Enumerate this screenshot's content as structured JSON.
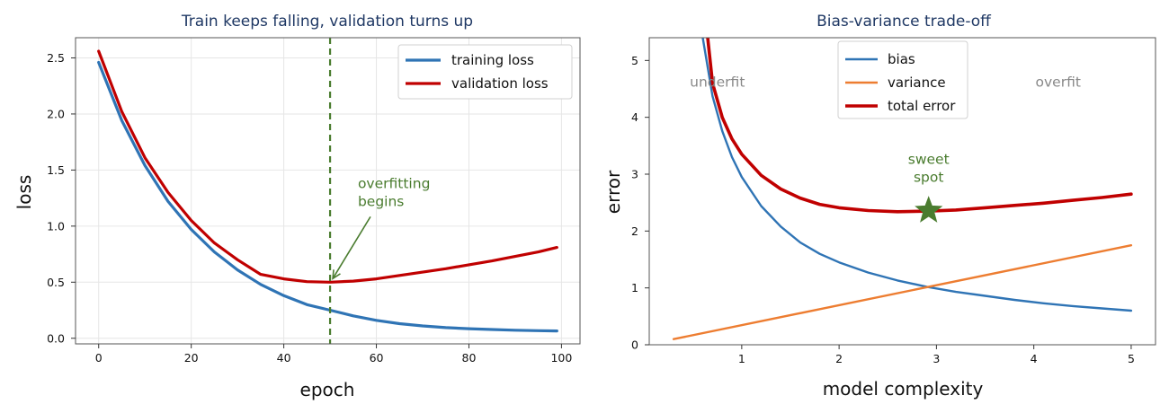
{
  "colors": {
    "training": "#2f74b5",
    "validation": "#c00000",
    "bias": "#2f74b5",
    "variance": "#ed7d31",
    "total": "#c00000",
    "marker": "#4a7c2f",
    "title": "#1f3864",
    "region_text": "#888888"
  },
  "chart_data": [
    {
      "type": "line",
      "title": "Train keeps falling, validation turns up",
      "xlabel": "epoch",
      "ylabel": "loss",
      "xlim": [
        -5,
        104
      ],
      "ylim": [
        -0.05,
        2.68
      ],
      "xticks": [
        0,
        20,
        40,
        60,
        80,
        100
      ],
      "yticks": [
        0.0,
        0.5,
        1.0,
        1.5,
        2.0,
        2.5
      ],
      "grid": true,
      "legend_position": "top-right",
      "series": [
        {
          "name": "training loss",
          "x": [
            0,
            5,
            10,
            15,
            20,
            25,
            30,
            35,
            40,
            45,
            50,
            55,
            60,
            65,
            70,
            75,
            80,
            85,
            90,
            95,
            99
          ],
          "y": [
            2.46,
            1.94,
            1.54,
            1.22,
            0.97,
            0.77,
            0.61,
            0.48,
            0.38,
            0.3,
            0.25,
            0.2,
            0.16,
            0.13,
            0.11,
            0.095,
            0.085,
            0.078,
            0.072,
            0.068,
            0.065
          ]
        },
        {
          "name": "validation loss",
          "x": [
            0,
            5,
            10,
            15,
            20,
            25,
            30,
            35,
            40,
            45,
            50,
            55,
            60,
            65,
            70,
            75,
            80,
            85,
            90,
            95,
            99
          ],
          "y": [
            2.56,
            2.02,
            1.61,
            1.3,
            1.05,
            0.85,
            0.7,
            0.57,
            0.53,
            0.505,
            0.5,
            0.51,
            0.53,
            0.56,
            0.59,
            0.62,
            0.655,
            0.69,
            0.73,
            0.77,
            0.81
          ]
        }
      ],
      "vline": {
        "x": 50
      },
      "annotation": {
        "text_lines": [
          "overfitting",
          "begins"
        ],
        "text_at": [
          56,
          1.34
        ],
        "arrow_to": [
          50,
          0.5
        ]
      }
    },
    {
      "type": "line",
      "title": "Bias-variance trade-off",
      "xlabel": "model complexity",
      "ylabel": "error",
      "xlim": [
        0.05,
        5.25
      ],
      "ylim": [
        0,
        5.4
      ],
      "xticks": [
        1,
        2,
        3,
        4,
        5
      ],
      "yticks": [
        0,
        1,
        2,
        3,
        4,
        5
      ],
      "grid": false,
      "legend_position": "top-center",
      "series": [
        {
          "name": "bias",
          "x": [
            0.6,
            0.7,
            0.8,
            0.9,
            1.0,
            1.2,
            1.4,
            1.6,
            1.8,
            2.0,
            2.3,
            2.6,
            2.9,
            3.2,
            3.5,
            3.8,
            4.1,
            4.4,
            4.7,
            5.0
          ],
          "y": [
            5.4,
            4.37,
            3.76,
            3.3,
            2.95,
            2.44,
            2.08,
            1.8,
            1.6,
            1.45,
            1.27,
            1.13,
            1.02,
            0.93,
            0.86,
            0.79,
            0.73,
            0.68,
            0.64,
            0.6
          ]
        },
        {
          "name": "variance",
          "x": [
            0.3,
            5.0
          ],
          "y": [
            0.1,
            1.75
          ]
        },
        {
          "name": "total error",
          "x": [
            0.65,
            0.7,
            0.8,
            0.9,
            1.0,
            1.2,
            1.4,
            1.6,
            1.8,
            2.0,
            2.3,
            2.6,
            2.9,
            3.2,
            3.5,
            3.8,
            4.1,
            4.4,
            4.7,
            5.0
          ],
          "y": [
            5.4,
            4.6,
            4.0,
            3.62,
            3.35,
            2.98,
            2.74,
            2.58,
            2.47,
            2.41,
            2.36,
            2.34,
            2.35,
            2.37,
            2.41,
            2.45,
            2.49,
            2.54,
            2.59,
            2.65
          ]
        }
      ],
      "texts": [
        {
          "text": "underfit",
          "x": 0.75,
          "y": 4.62
        },
        {
          "text": "overfit",
          "x": 4.25,
          "y": 4.62
        }
      ],
      "marker": {
        "x": 2.92,
        "y": 2.36,
        "label_lines": [
          "sweet",
          "spot"
        ]
      }
    }
  ]
}
